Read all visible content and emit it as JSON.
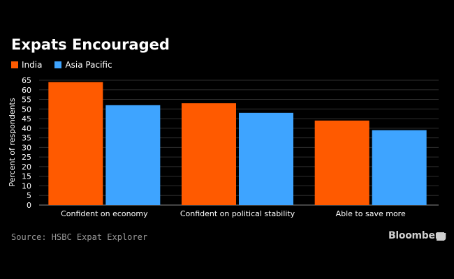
{
  "source": "Source: HSBC Expat Explorer",
  "brand": "Bloomberg",
  "colors": {
    "background": "#000000",
    "india": "#ff5a00",
    "asia_pacific": "#3ea4ff",
    "grid": "#2e2e2e",
    "axis_text": "#ffffff"
  },
  "chart_data": {
    "type": "bar",
    "title": "Expats Encouraged",
    "ylabel": "Percent of respondents",
    "xlabel": "",
    "categories": [
      "Confident on economy",
      "Confident on political stability",
      "Able to save more"
    ],
    "series": [
      {
        "name": "India",
        "color": "#ff5a00",
        "values": [
          64,
          53,
          44
        ]
      },
      {
        "name": "Asia Pacific",
        "color": "#3ea4ff",
        "values": [
          52,
          48,
          39
        ]
      }
    ],
    "ylim": [
      0,
      65
    ],
    "yticks": [
      0,
      5,
      10,
      15,
      20,
      25,
      30,
      35,
      40,
      45,
      50,
      55,
      60,
      65
    ],
    "grid": true,
    "legend_position": "top-left"
  }
}
